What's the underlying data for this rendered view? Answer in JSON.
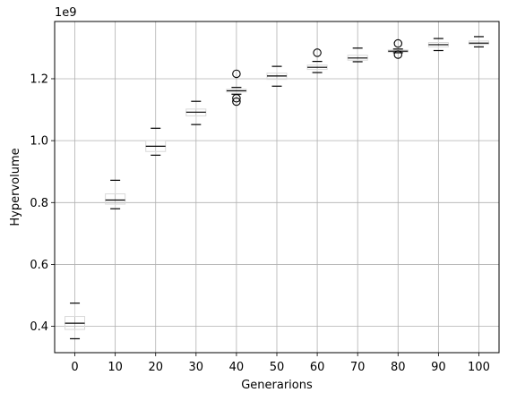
{
  "chart_data": {
    "type": "boxplot",
    "title": "",
    "xlabel": "Generarions",
    "ylabel": "Hypervolume",
    "y_offset_label": "1e9",
    "y_scale": 1000000000,
    "ylim": [
      0.315,
      1.385
    ],
    "yticks": [
      0.4,
      0.6,
      0.8,
      1.0,
      1.2
    ],
    "ytick_labels": [
      "0.4",
      "0.6",
      "0.8",
      "1.0",
      "1.2"
    ],
    "grid": true,
    "categories": [
      "0",
      "10",
      "20",
      "30",
      "40",
      "50",
      "60",
      "70",
      "80",
      "90",
      "100"
    ],
    "boxes": [
      {
        "whisker_low": 0.36,
        "q1": 0.39,
        "median": 0.41,
        "q3": 0.432,
        "whisker_high": 0.475,
        "fliers": []
      },
      {
        "whisker_low": 0.78,
        "q1": 0.795,
        "median": 0.808,
        "q3": 0.828,
        "whisker_high": 0.872,
        "fliers": []
      },
      {
        "whisker_low": 0.953,
        "q1": 0.965,
        "median": 0.982,
        "q3": 1.0,
        "whisker_high": 1.04,
        "fliers": []
      },
      {
        "whisker_low": 1.052,
        "q1": 1.08,
        "median": 1.092,
        "q3": 1.102,
        "whisker_high": 1.127,
        "fliers": []
      },
      {
        "whisker_low": 1.15,
        "q1": 1.157,
        "median": 1.161,
        "q3": 1.166,
        "whisker_high": 1.172,
        "fliers": [
          1.216,
          1.137,
          1.126
        ]
      },
      {
        "whisker_low": 1.176,
        "q1": 1.198,
        "median": 1.209,
        "q3": 1.218,
        "whisker_high": 1.24,
        "fliers": []
      },
      {
        "whisker_low": 1.22,
        "q1": 1.23,
        "median": 1.237,
        "q3": 1.244,
        "whisker_high": 1.256,
        "fliers": [
          1.284
        ]
      },
      {
        "whisker_low": 1.255,
        "q1": 1.26,
        "median": 1.267,
        "q3": 1.276,
        "whisker_high": 1.299,
        "fliers": []
      },
      {
        "whisker_low": 1.284,
        "q1": 1.286,
        "median": 1.289,
        "q3": 1.293,
        "whisker_high": 1.296,
        "fliers": [
          1.314,
          1.278
        ]
      },
      {
        "whisker_low": 1.291,
        "q1": 1.303,
        "median": 1.31,
        "q3": 1.317,
        "whisker_high": 1.33,
        "fliers": []
      },
      {
        "whisker_low": 1.303,
        "q1": 1.311,
        "median": 1.315,
        "q3": 1.322,
        "whisker_high": 1.336,
        "fliers": []
      }
    ],
    "colors": {
      "box": "#d9d9d9",
      "whisker": "#000000",
      "median": "#000000",
      "grid": "#b0b0b0",
      "flier": "#000000",
      "axes": "#000000"
    }
  }
}
